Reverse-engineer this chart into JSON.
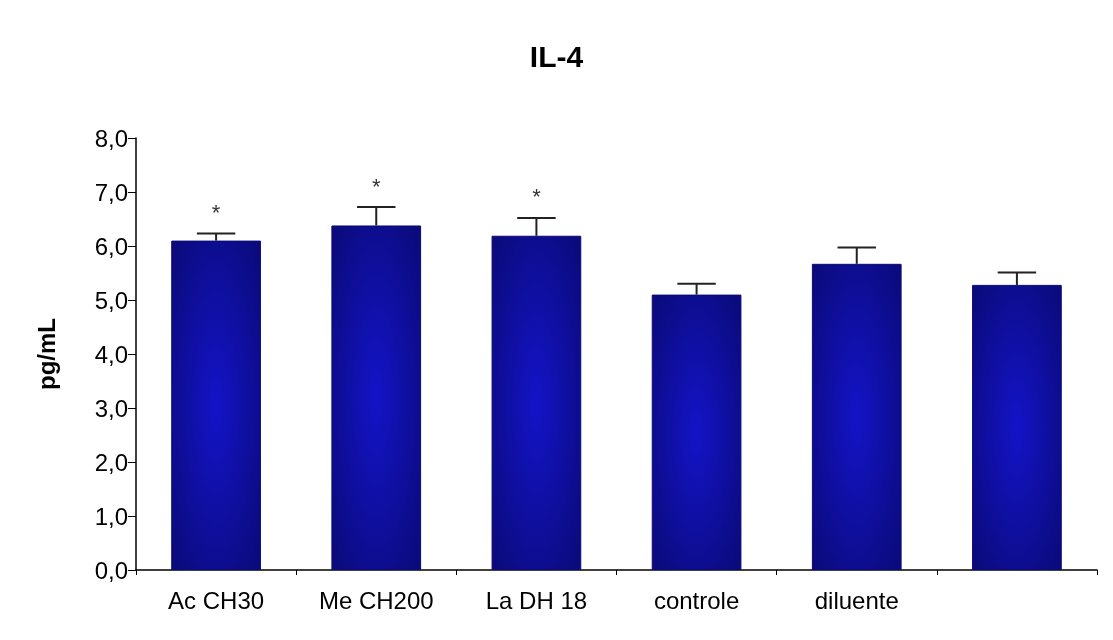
{
  "chart_data": {
    "type": "bar",
    "title": "IL-4",
    "ylabel": "pg/mL",
    "categories": [
      "Ac CH30",
      "Me CH200",
      "La DH 18",
      "controle",
      "diluente",
      null
    ],
    "values": [
      6.1,
      6.38,
      6.19,
      5.1,
      5.67,
      5.28
    ],
    "errors": [
      [
        6.1,
        6.23
      ],
      [
        6.38,
        6.72
      ],
      [
        6.19,
        6.52
      ],
      [
        5.1,
        5.3
      ],
      [
        5.67,
        5.97
      ],
      [
        5.28,
        5.51
      ]
    ],
    "color": "#0a0a78",
    "ylim": [
      0,
      8
    ],
    "yticks": [
      {
        "value": 0,
        "label": "0,0"
      },
      {
        "value": 1,
        "label": "1,0"
      },
      {
        "value": 2,
        "label": "2,0"
      },
      {
        "value": 3,
        "label": "3,0"
      },
      {
        "value": 4,
        "label": "4,0"
      },
      {
        "value": 5,
        "label": "5,0"
      },
      {
        "value": 6,
        "label": "6,0"
      },
      {
        "value": 7,
        "label": "7,0"
      },
      {
        "value": 8,
        "label": "8,0"
      }
    ],
    "annotations": [
      "*",
      "*",
      "*"
    ],
    "grid": false
  }
}
